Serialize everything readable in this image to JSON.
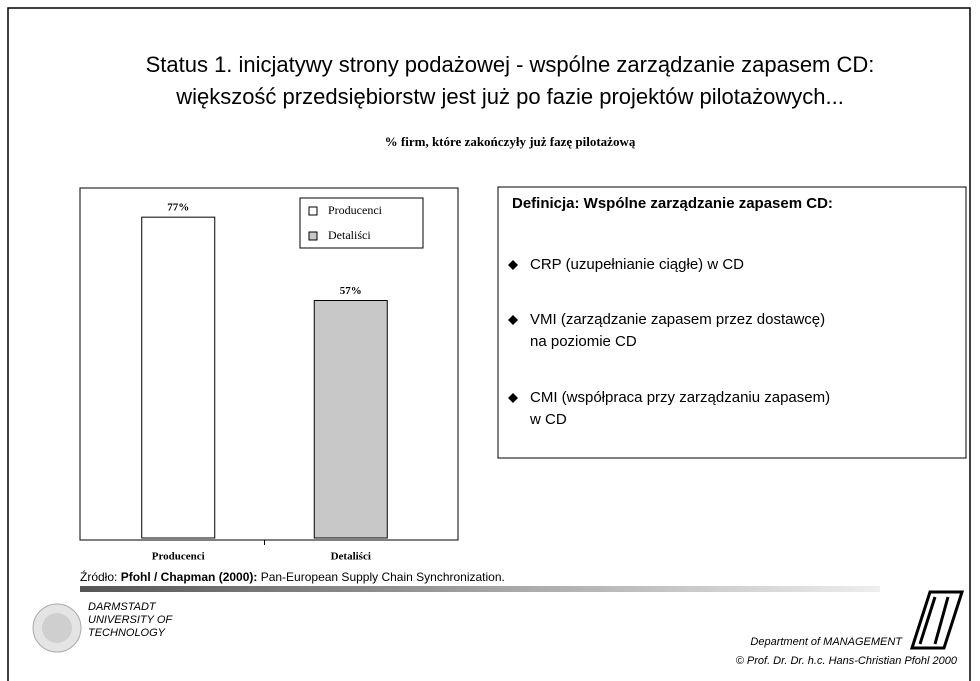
{
  "slide": {
    "title_lines": [
      "Status 1. inicjatywy strony podażowej - wspólne zarządzanie zapasem CD:",
      "większość przedsiębiorstw jest już po fazie projektów pilotażowych..."
    ],
    "definition": {
      "heading": "Definicja: Wspólne zarządzanie zapasem CD:",
      "items": [
        [
          "CRP (uzupełnianie ciągłe) w CD"
        ],
        [
          "VMI (zarządzanie zapasem przez dostawcę)",
          "na poziomie CD"
        ],
        [
          "CMI (współpraca przy zarządzaniu zapasem)",
          "w CD"
        ]
      ]
    },
    "source": {
      "prefix": "Źródło: ",
      "author": "Pfohl / Chapman (2000):",
      "text": " Pan-European Supply Chain Synchronization."
    },
    "university": [
      "DARMSTADT",
      "UNIVERSITY OF",
      "TECHNOLOGY"
    ],
    "department": "Department of MANAGEMENT",
    "copyright": "© Prof. Dr. Dr. h.c. Hans-Christian Pfohl 2000"
  },
  "chart_data": {
    "type": "bar",
    "title": "% firm, które zakończyły już fazę pilotażową",
    "categories": [
      "Producenci",
      "Detaliści"
    ],
    "values": [
      77,
      57
    ],
    "value_labels": [
      "77%",
      "57%"
    ],
    "colors": [
      "#ffffff",
      "#c8c8c8"
    ],
    "ylim": [
      0,
      84
    ],
    "legend": "top-right"
  }
}
